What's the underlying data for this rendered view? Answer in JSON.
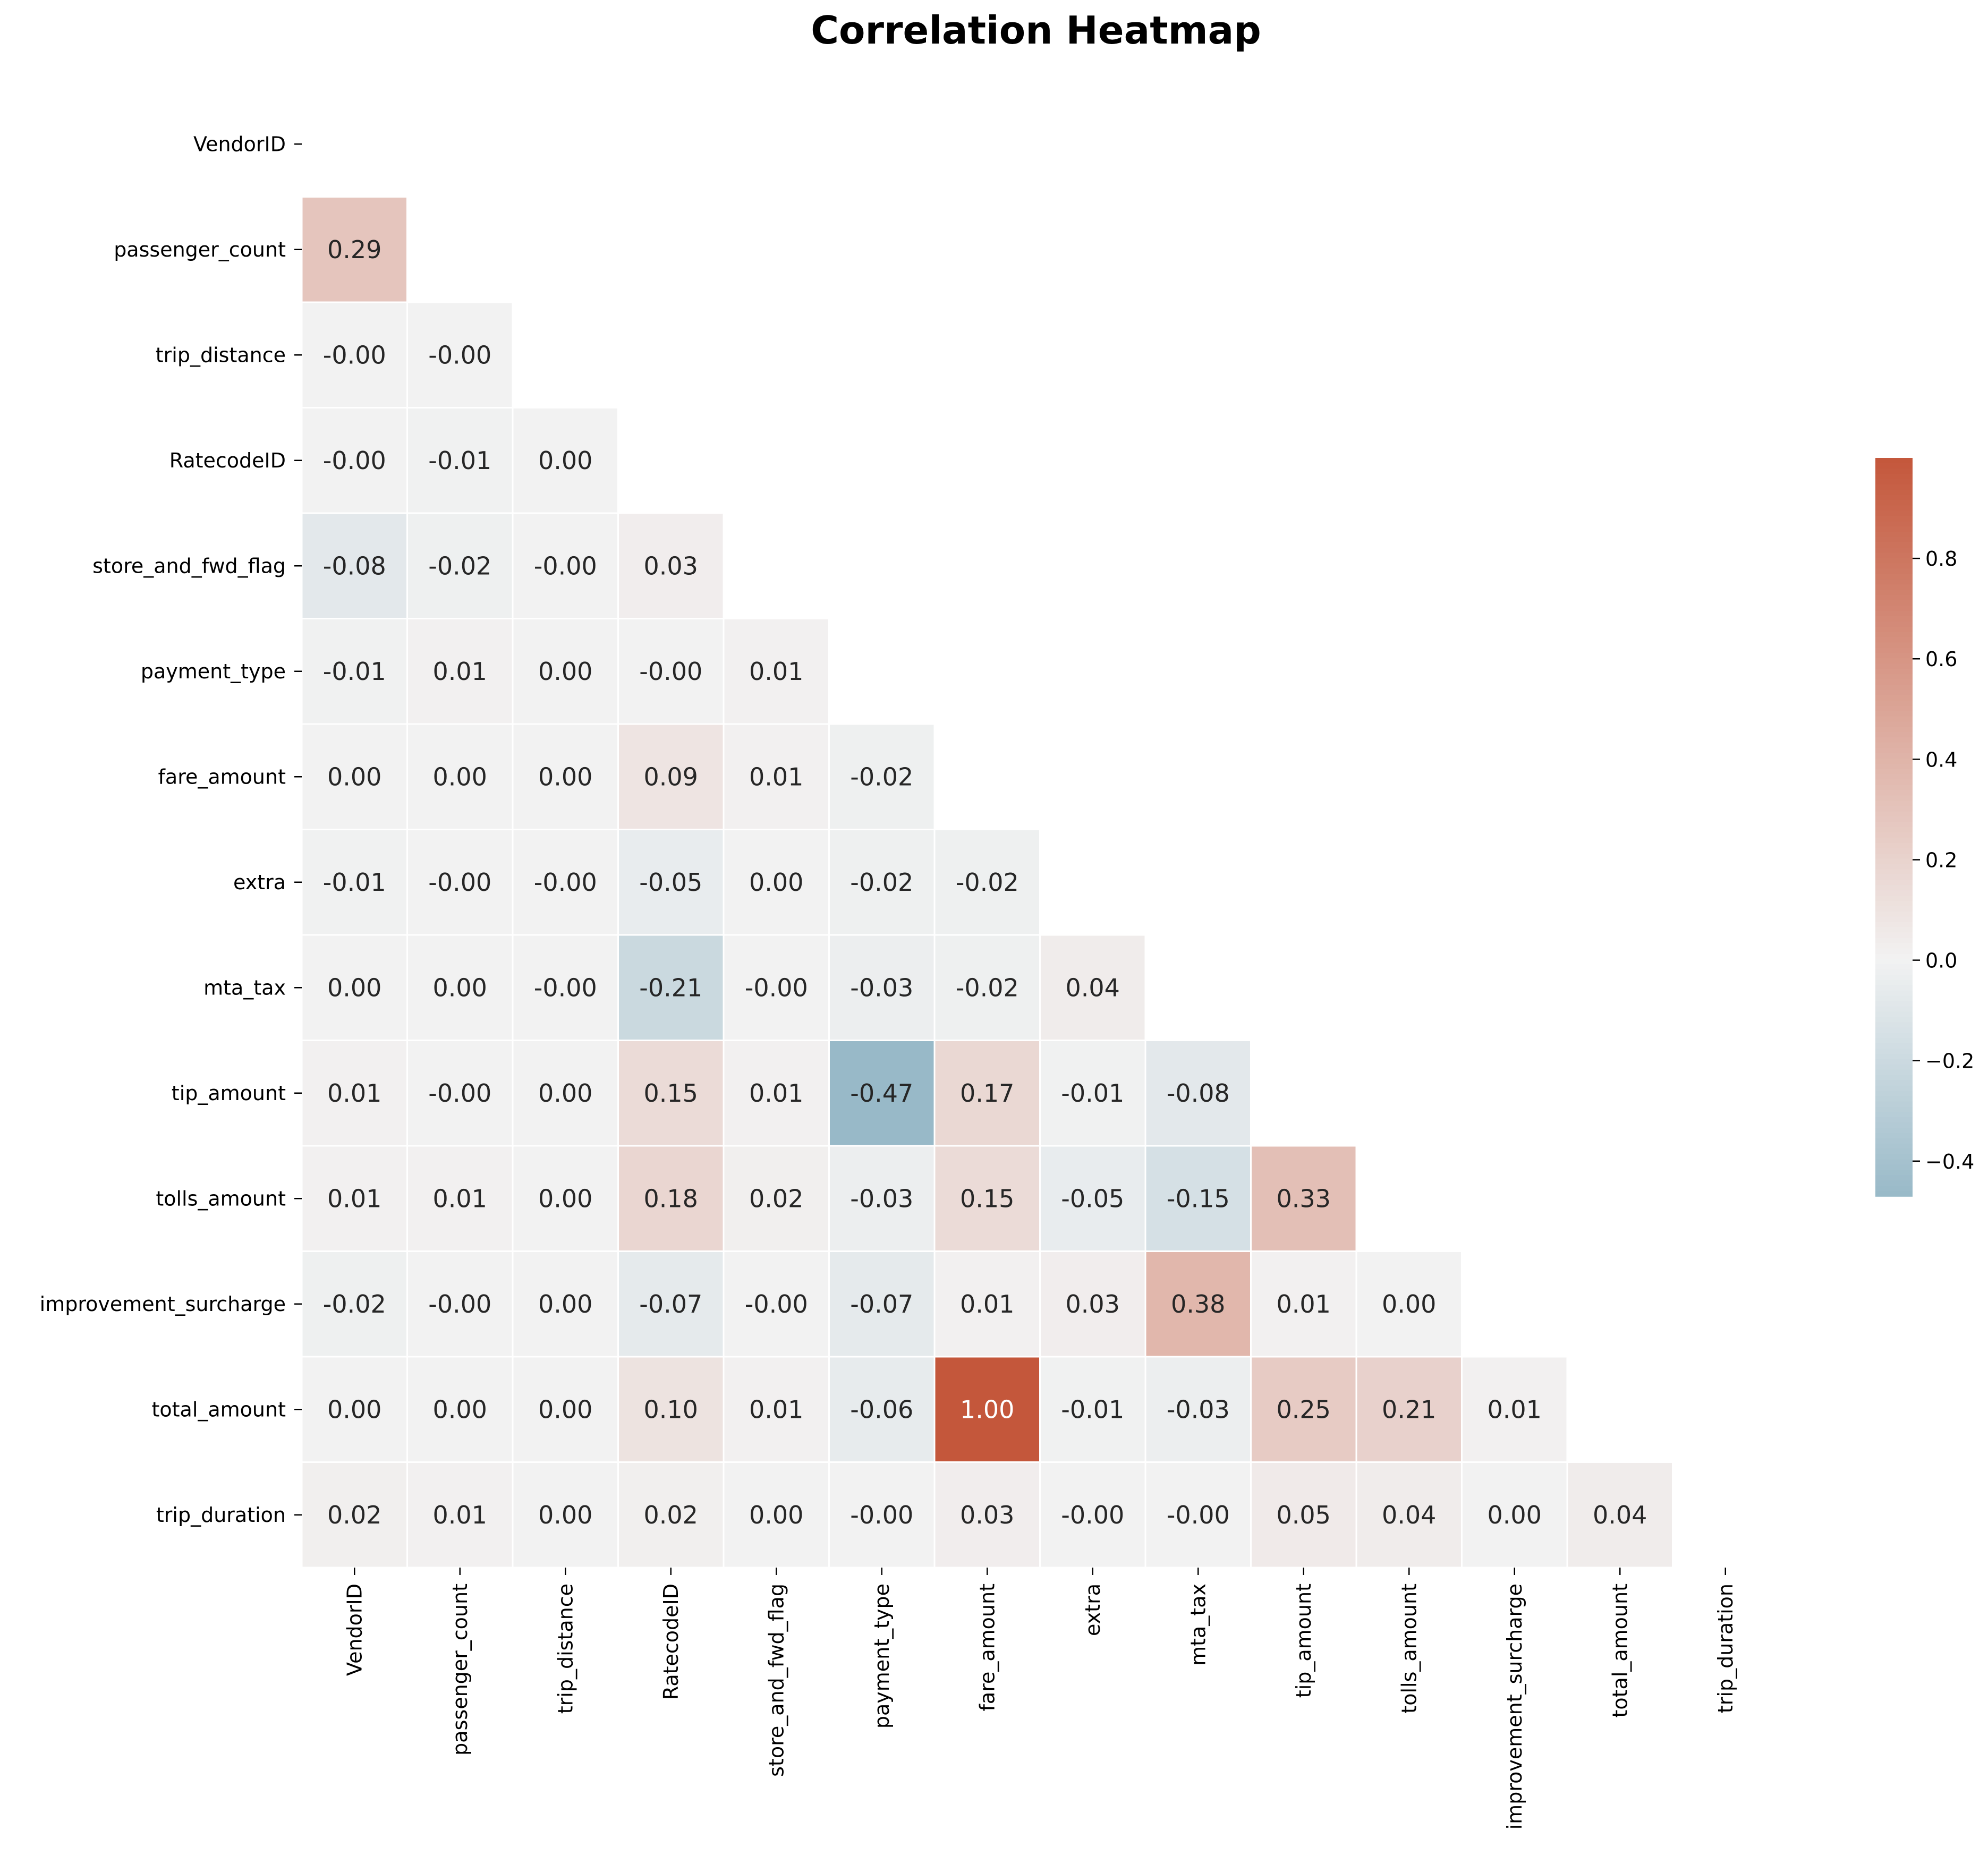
{
  "chart_data": {
    "type": "heatmap",
    "title": "Correlation Heatmap",
    "mask": "upper-triangle-including-diagonal",
    "labels": [
      "VendorID",
      "passenger_count",
      "trip_distance",
      "RatecodeID",
      "store_and_fwd_flag",
      "payment_type",
      "fare_amount",
      "extra",
      "mta_tax",
      "tip_amount",
      "tolls_amount",
      "improvement_surcharge",
      "total_amount",
      "trip_duration"
    ],
    "rows": [
      [],
      [
        "0.29"
      ],
      [
        "-0.00",
        "-0.00"
      ],
      [
        "-0.00",
        "-0.01",
        "0.00"
      ],
      [
        "-0.08",
        "-0.02",
        "-0.00",
        "0.03"
      ],
      [
        "-0.01",
        "0.01",
        "0.00",
        "-0.00",
        "0.01"
      ],
      [
        "0.00",
        "0.00",
        "0.00",
        "0.09",
        "0.01",
        "-0.02"
      ],
      [
        "-0.01",
        "-0.00",
        "-0.00",
        "-0.05",
        "0.00",
        "-0.02",
        "-0.02"
      ],
      [
        "0.00",
        "0.00",
        "-0.00",
        "-0.21",
        "-0.00",
        "-0.03",
        "-0.02",
        "0.04"
      ],
      [
        "0.01",
        "-0.00",
        "0.00",
        "0.15",
        "0.01",
        "-0.47",
        "0.17",
        "-0.01",
        "-0.08"
      ],
      [
        "0.01",
        "0.01",
        "0.00",
        "0.18",
        "0.02",
        "-0.03",
        "0.15",
        "-0.05",
        "-0.15",
        "0.33"
      ],
      [
        "-0.02",
        "-0.00",
        "0.00",
        "-0.07",
        "-0.00",
        "-0.07",
        "0.01",
        "0.03",
        "0.38",
        "0.01",
        "0.00"
      ],
      [
        "0.00",
        "0.00",
        "0.00",
        "0.10",
        "0.01",
        "-0.06",
        "1.00",
        "-0.01",
        "-0.03",
        "0.25",
        "0.21",
        "0.01"
      ],
      [
        "0.02",
        "0.01",
        "0.00",
        "0.02",
        "0.00",
        "-0.00",
        "0.03",
        "-0.00",
        "-0.00",
        "0.05",
        "0.04",
        "0.00",
        "0.04"
      ]
    ],
    "colorbar": {
      "vmin": -0.47,
      "vmax": 1.0,
      "ticks": [
        "0.8",
        "0.6",
        "0.4",
        "0.2",
        "0.0",
        "−0.2",
        "−0.4"
      ],
      "tick_values": [
        0.8,
        0.6,
        0.4,
        0.2,
        0.0,
        -0.2,
        -0.4
      ],
      "colormap": "diverging blue-white-red"
    },
    "colors": {
      "negative_end": "#98b9c8",
      "center": "#f2f2f2",
      "positive_end": "#c4573b"
    }
  }
}
